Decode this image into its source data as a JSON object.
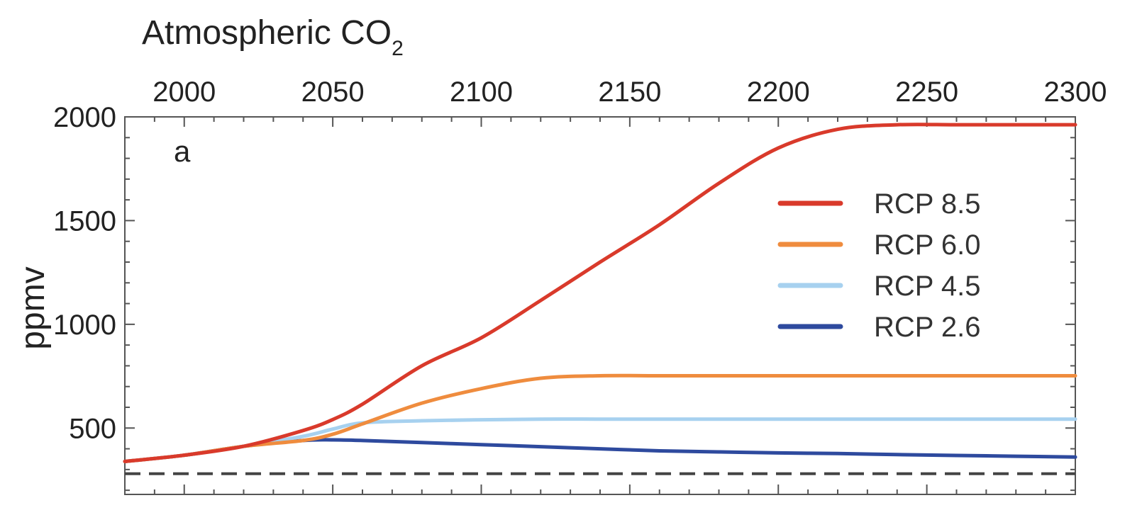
{
  "chart_data": {
    "type": "line",
    "title": "Atmospheric CO",
    "title_subscript": "2",
    "panel_label": "a",
    "xlabel": "",
    "ylabel": "ppmv",
    "xlim": [
      1980,
      2300
    ],
    "ylim": [
      180,
      2000
    ],
    "x_ticks": [
      2000,
      2050,
      2100,
      2150,
      2200,
      2250,
      2300
    ],
    "y_ticks": [
      500,
      1000,
      1500,
      2000
    ],
    "x_axis_position": "top",
    "grid": false,
    "legend_position": "right",
    "baseline": {
      "value": 280,
      "style": "dashed",
      "color": "#444444"
    },
    "x": [
      1980,
      2000,
      2020,
      2040,
      2050,
      2060,
      2080,
      2100,
      2120,
      2140,
      2160,
      2180,
      2200,
      2220,
      2240,
      2260,
      2280,
      2300
    ],
    "series": [
      {
        "name": "RCP 8.5",
        "color": "#d93a2b",
        "values": [
          339,
          369,
          412,
          488,
          541,
          615,
          800,
          935,
          1115,
          1300,
          1480,
          1680,
          1850,
          1940,
          1962,
          1962,
          1962,
          1962
        ]
      },
      {
        "name": "RCP 6.0",
        "color": "#ef8c3e",
        "values": [
          339,
          369,
          412,
          440,
          470,
          520,
          620,
          690,
          740,
          752,
          752,
          752,
          752,
          752,
          752,
          752,
          752,
          752
        ]
      },
      {
        "name": "RCP 4.5",
        "color": "#a7d1ef",
        "values": [
          339,
          369,
          412,
          460,
          495,
          525,
          535,
          540,
          543,
          543,
          543,
          543,
          543,
          543,
          543,
          543,
          543,
          543
        ]
      },
      {
        "name": "RCP 2.6",
        "color": "#2e4a9e",
        "values": [
          339,
          369,
          412,
          440,
          443,
          440,
          430,
          420,
          410,
          400,
          390,
          385,
          380,
          377,
          372,
          368,
          364,
          360
        ]
      }
    ]
  }
}
